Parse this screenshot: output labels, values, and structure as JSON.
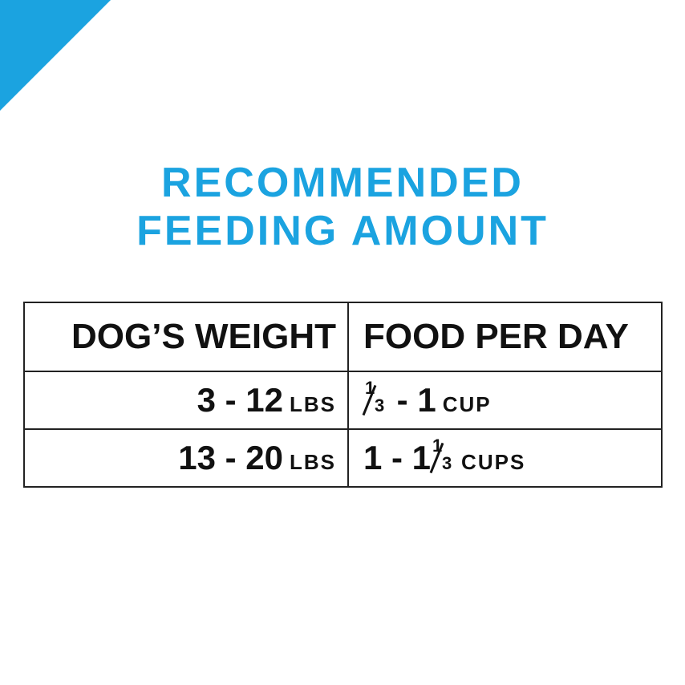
{
  "colors": {
    "accent": "#1ba3e0",
    "text": "#111111"
  },
  "title": {
    "line1": "RECOMMENDED",
    "line2": "FEEDING AMOUNT"
  },
  "table": {
    "headers": [
      "DOG’S WEIGHT",
      "FOOD PER DAY"
    ],
    "rows": [
      {
        "weight": "3 - 12",
        "weight_unit": "LBS",
        "food_whole": "",
        "food_num": "1",
        "food_den": "3",
        "food_rest": "- 1",
        "food_unit": "CUP"
      },
      {
        "weight": "13 - 20",
        "weight_unit": "LBS",
        "food_whole": "1 - 1",
        "food_num": "1",
        "food_den": "3",
        "food_rest": "",
        "food_unit": "CUPS"
      }
    ]
  }
}
